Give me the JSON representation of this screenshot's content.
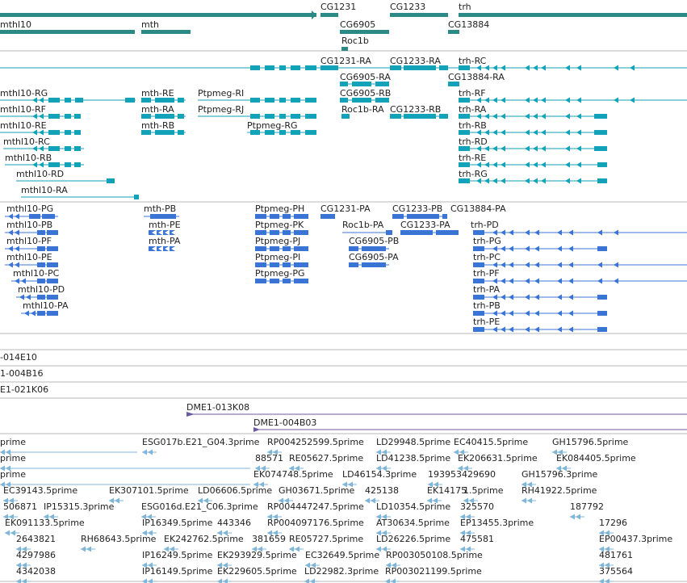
{
  "colors": {
    "gene": "#2b8a86",
    "transcript_cg": "#13a2b8",
    "transcript_fb": "#3a74d4",
    "clone": "#6b5aa0",
    "est": "#7fb6d8",
    "divider": "#b8b8b8"
  },
  "tracks": {
    "genes": [
      {
        "label": "CG1231"
      },
      {
        "label": "CG1233"
      },
      {
        "label": "trh"
      },
      {
        "label": "mthl10"
      },
      {
        "label": "mth"
      },
      {
        "label": "CG6905"
      },
      {
        "label": "CG13884"
      },
      {
        "label": "Roc1b"
      }
    ],
    "transcripts_cg": [
      {
        "label": "CG1231-RA"
      },
      {
        "label": "CG1233-RA"
      },
      {
        "label": "trh-RC"
      },
      {
        "label": "CG6905-RA"
      },
      {
        "label": "CG13884-RA"
      },
      {
        "label": "mthl10-RG"
      },
      {
        "label": "mth-RE"
      },
      {
        "label": "Ptpmeg-RI"
      },
      {
        "label": "CG6905-RB"
      },
      {
        "label": "trh-RF"
      },
      {
        "label": "mthl10-RF"
      },
      {
        "label": "mth-RA"
      },
      {
        "label": "Ptpmeg-RJ"
      },
      {
        "label": "Roc1b-RA"
      },
      {
        "label": "CG1233-RB"
      },
      {
        "label": "trh-RA"
      },
      {
        "label": "mthl10-RE"
      },
      {
        "label": "mth-RB"
      },
      {
        "label": "Ptpmeg-RG"
      },
      {
        "label": "trh-RB"
      },
      {
        "label": "mthl10-RC"
      },
      {
        "label": "trh-RD"
      },
      {
        "label": "mthl10-RB"
      },
      {
        "label": "trh-RE"
      },
      {
        "label": "mthl10-RD"
      },
      {
        "label": "trh-RG"
      },
      {
        "label": "mthl10-RA"
      }
    ],
    "transcripts_fb": [
      {
        "label": "mthl10-PG"
      },
      {
        "label": "mth-PB"
      },
      {
        "label": "Ptpmeg-PH"
      },
      {
        "label": "CG1231-PA"
      },
      {
        "label": "CG1233-PB"
      },
      {
        "label": "CG13884-PA"
      },
      {
        "label": "mthl10-PB"
      },
      {
        "label": "mth-PE"
      },
      {
        "label": "Ptpmeg-PK"
      },
      {
        "label": "Roc1b-PA"
      },
      {
        "label": "CG1233-PA"
      },
      {
        "label": "trh-PD"
      },
      {
        "label": "mthl10-PF"
      },
      {
        "label": "mth-PA"
      },
      {
        "label": "Ptpmeg-PJ"
      },
      {
        "label": "CG6905-PB"
      },
      {
        "label": "trh-PG"
      },
      {
        "label": "mthl10-PE"
      },
      {
        "label": "Ptpmeg-PI"
      },
      {
        "label": "CG6905-PA"
      },
      {
        "label": "trh-PC"
      },
      {
        "label": "mthl10-PC"
      },
      {
        "label": "Ptpmeg-PG"
      },
      {
        "label": "trh-PF"
      },
      {
        "label": "mthl10-PD"
      },
      {
        "label": "trh-PA"
      },
      {
        "label": "mthl10-PA"
      },
      {
        "label": "trh-PB"
      },
      {
        "label": "trh-PE"
      }
    ],
    "clones": [
      {
        "label": "-014E10"
      },
      {
        "label": "1-004B16"
      },
      {
        "label": "E1-021K06"
      },
      {
        "label": "DME1-013K08"
      },
      {
        "label": "DME1-004B03"
      }
    ],
    "ests": [
      {
        "label": "prime"
      },
      {
        "label": "ESG017b.E21_G04.3prime"
      },
      {
        "label": "RP004252599.5prime"
      },
      {
        "label": "LD29948.5prime"
      },
      {
        "label": "EC40415.5prime"
      },
      {
        "label": "GH15796.5prime"
      },
      {
        "label": "prime"
      },
      {
        "label": "88571"
      },
      {
        "label": "RE05627.5prime"
      },
      {
        "label": "LD41238.5prime"
      },
      {
        "label": "EK206631.5prime"
      },
      {
        "label": "EK084405.5prime"
      },
      {
        "label": "prime"
      },
      {
        "label": "EK074748.5prime"
      },
      {
        "label": "LD46154.3prime"
      },
      {
        "label": "193953429690"
      },
      {
        "label": "GH15796.3prime"
      },
      {
        "label": "EC39143.5prime"
      },
      {
        "label": "EK307101.5prime"
      },
      {
        "label": "LD06606.5prime"
      },
      {
        "label": "GH03671.5prime"
      },
      {
        "label": "425138"
      },
      {
        "label": "EK14175"
      },
      {
        "label": "1.5prime"
      },
      {
        "label": "RH41922.5prime"
      },
      {
        "label": "506871"
      },
      {
        "label": "IP15315.3prime"
      },
      {
        "label": "ESG016d.E21_C06.3prime"
      },
      {
        "label": "RP004447247.5prime"
      },
      {
        "label": "LD10354.5prime"
      },
      {
        "label": "325570"
      },
      {
        "label": "187792"
      },
      {
        "label": "EK091133.5prime"
      },
      {
        "label": "IP16349.5prime"
      },
      {
        "label": "443346"
      },
      {
        "label": "RP004097176.5prime"
      },
      {
        "label": "AT30634.5prime"
      },
      {
        "label": "EP13455.3prime"
      },
      {
        "label": "17296"
      },
      {
        "label": "2643821"
      },
      {
        "label": "RH68643.5prime"
      },
      {
        "label": "EK242762.5prime"
      },
      {
        "label": "381659"
      },
      {
        "label": "RE05727.5prime"
      },
      {
        "label": "LD26226.5prime"
      },
      {
        "label": "475581"
      },
      {
        "label": "EP00437.3prime"
      },
      {
        "label": "4297986"
      },
      {
        "label": "IP16249.5prime"
      },
      {
        "label": "EK293929.5prime"
      },
      {
        "label": "EC32649.5prime"
      },
      {
        "label": "RP003050108.5prime"
      },
      {
        "label": "481761"
      },
      {
        "label": "4342038"
      },
      {
        "label": "IP16149.5prime"
      },
      {
        "label": "EK229605.5prime"
      },
      {
        "label": "LD22982.3prime"
      },
      {
        "label": "RP003021199.5prime"
      },
      {
        "label": "375564"
      }
    ]
  }
}
